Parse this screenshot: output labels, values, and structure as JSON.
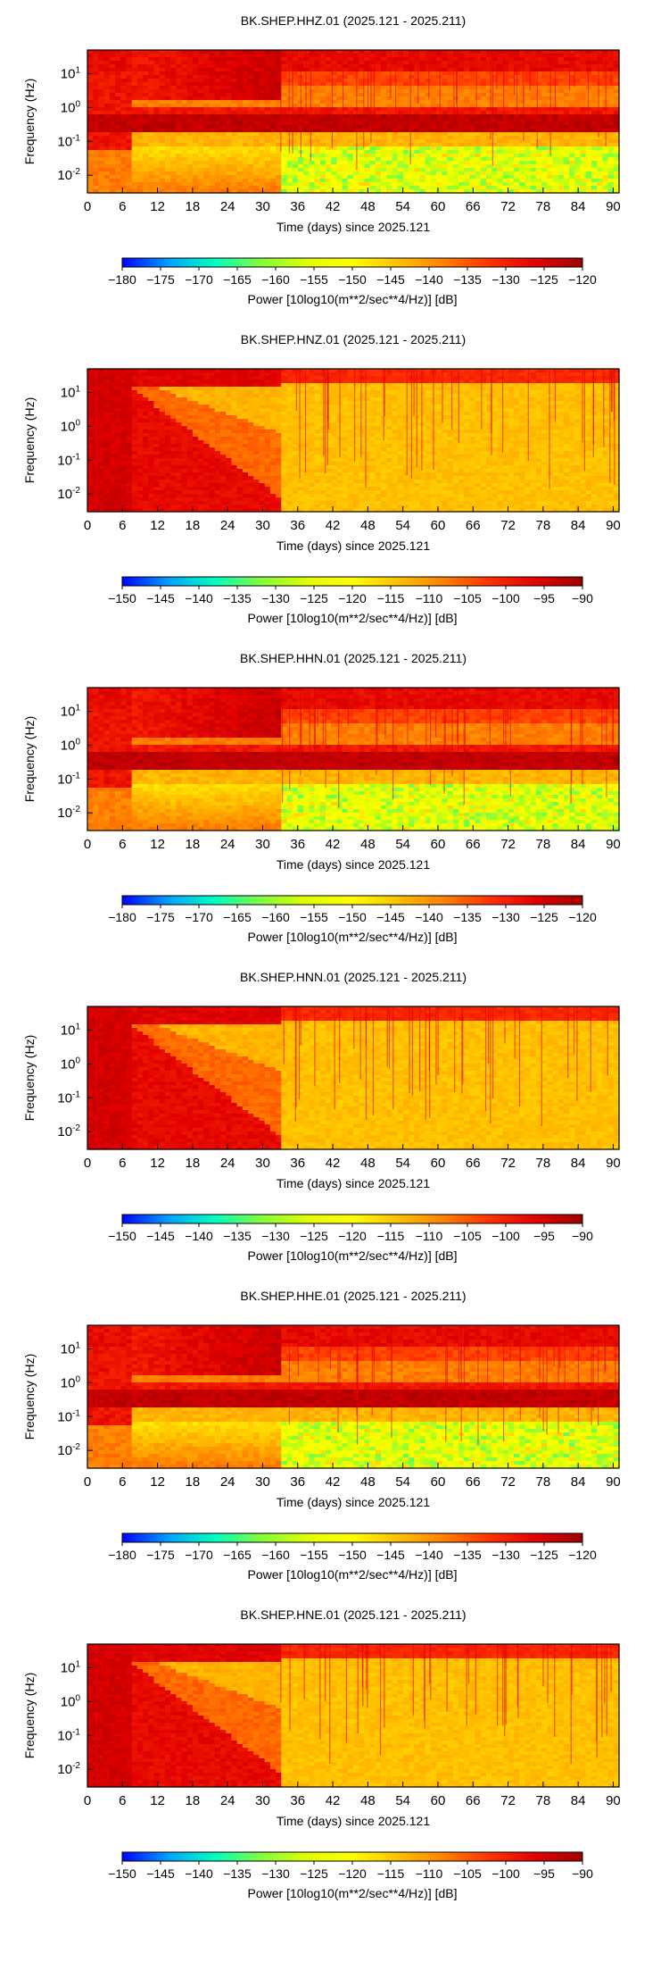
{
  "figure": {
    "xlabel": "Time (days) since 2025.121",
    "ylabel": "Frequency (Hz)",
    "colorbar_label": "Power [10log10(m**2/sec**4/Hz)] [dB]"
  },
  "colormap": [
    "#0000ff",
    "#00a0ff",
    "#00ffc0",
    "#7fff3f",
    "#e0ff00",
    "#ffff00",
    "#ffc000",
    "#ff8000",
    "#ff3000",
    "#e00000",
    "#a00000"
  ],
  "chart_data": [
    {
      "type": "heatmap",
      "title": "BK.SHEP.HHZ.01 (2025.121 - 2025.211)",
      "xlabel": "Time (days) since 2025.121",
      "ylabel": "Frequency (Hz)",
      "x_ticks": [
        0,
        6,
        12,
        18,
        24,
        30,
        36,
        42,
        48,
        54,
        60,
        66,
        72,
        78,
        84,
        90
      ],
      "xlim": [
        0,
        91
      ],
      "y_scale": "log",
      "y_ticks": [
        "10^-2",
        "10^-1",
        "10^0",
        "10^1"
      ],
      "ylim_hz": [
        0.003,
        50
      ],
      "colorbar": {
        "label": "Power [10log10(m**2/sec**4/Hz)] [dB]",
        "range_db": [
          -180,
          -120
        ],
        "ticks": [
          -180,
          -175,
          -170,
          -165,
          -160,
          -155,
          -150,
          -145,
          -140,
          -135,
          -130,
          -125,
          -120
        ]
      },
      "pattern": "broadband"
    },
    {
      "type": "heatmap",
      "title": "BK.SHEP.HNZ.01 (2025.121 - 2025.211)",
      "xlabel": "Time (days) since 2025.121",
      "ylabel": "Frequency (Hz)",
      "x_ticks": [
        0,
        6,
        12,
        18,
        24,
        30,
        36,
        42,
        48,
        54,
        60,
        66,
        72,
        78,
        84,
        90
      ],
      "xlim": [
        0,
        91
      ],
      "y_scale": "log",
      "y_ticks": [
        "10^-2",
        "10^-1",
        "10^0",
        "10^1"
      ],
      "ylim_hz": [
        0.003,
        50
      ],
      "colorbar": {
        "label": "Power [10log10(m**2/sec**4/Hz)] [dB]",
        "range_db": [
          -150,
          -90
        ],
        "ticks": [
          -150,
          -145,
          -140,
          -135,
          -130,
          -125,
          -120,
          -115,
          -110,
          -105,
          -100,
          -95,
          -90
        ]
      },
      "pattern": "strong-motion"
    },
    {
      "type": "heatmap",
      "title": "BK.SHEP.HHN.01 (2025.121 - 2025.211)",
      "xlabel": "Time (days) since 2025.121",
      "ylabel": "Frequency (Hz)",
      "x_ticks": [
        0,
        6,
        12,
        18,
        24,
        30,
        36,
        42,
        48,
        54,
        60,
        66,
        72,
        78,
        84,
        90
      ],
      "xlim": [
        0,
        91
      ],
      "y_scale": "log",
      "y_ticks": [
        "10^-2",
        "10^-1",
        "10^0",
        "10^1"
      ],
      "ylim_hz": [
        0.003,
        50
      ],
      "colorbar": {
        "label": "Power [10log10(m**2/sec**4/Hz)] [dB]",
        "range_db": [
          -180,
          -120
        ],
        "ticks": [
          -180,
          -175,
          -170,
          -165,
          -160,
          -155,
          -150,
          -145,
          -140,
          -135,
          -130,
          -125,
          -120
        ]
      },
      "pattern": "broadband"
    },
    {
      "type": "heatmap",
      "title": "BK.SHEP.HNN.01 (2025.121 - 2025.211)",
      "xlabel": "Time (days) since 2025.121",
      "ylabel": "Frequency (Hz)",
      "x_ticks": [
        0,
        6,
        12,
        18,
        24,
        30,
        36,
        42,
        48,
        54,
        60,
        66,
        72,
        78,
        84,
        90
      ],
      "xlim": [
        0,
        91
      ],
      "y_scale": "log",
      "y_ticks": [
        "10^-2",
        "10^-1",
        "10^0",
        "10^1"
      ],
      "ylim_hz": [
        0.003,
        50
      ],
      "colorbar": {
        "label": "Power [10log10(m**2/sec**4/Hz)] [dB]",
        "range_db": [
          -150,
          -90
        ],
        "ticks": [
          -150,
          -145,
          -140,
          -135,
          -130,
          -125,
          -120,
          -115,
          -110,
          -105,
          -100,
          -95,
          -90
        ]
      },
      "pattern": "strong-motion"
    },
    {
      "type": "heatmap",
      "title": "BK.SHEP.HHE.01 (2025.121 - 2025.211)",
      "xlabel": "Time (days) since 2025.121",
      "ylabel": "Frequency (Hz)",
      "x_ticks": [
        0,
        6,
        12,
        18,
        24,
        30,
        36,
        42,
        48,
        54,
        60,
        66,
        72,
        78,
        84,
        90
      ],
      "xlim": [
        0,
        91
      ],
      "y_scale": "log",
      "y_ticks": [
        "10^-2",
        "10^-1",
        "10^0",
        "10^1"
      ],
      "ylim_hz": [
        0.003,
        50
      ],
      "colorbar": {
        "label": "Power [10log10(m**2/sec**4/Hz)] [dB]",
        "range_db": [
          -180,
          -120
        ],
        "ticks": [
          -180,
          -175,
          -170,
          -165,
          -160,
          -155,
          -150,
          -145,
          -140,
          -135,
          -130,
          -125,
          -120
        ]
      },
      "pattern": "broadband"
    },
    {
      "type": "heatmap",
      "title": "BK.SHEP.HNE.01 (2025.121 - 2025.211)",
      "xlabel": "Time (days) since 2025.121",
      "ylabel": "Frequency (Hz)",
      "x_ticks": [
        0,
        6,
        12,
        18,
        24,
        30,
        36,
        42,
        48,
        54,
        60,
        66,
        72,
        78,
        84,
        90
      ],
      "xlim": [
        0,
        91
      ],
      "y_scale": "log",
      "y_ticks": [
        "10^-2",
        "10^-1",
        "10^0",
        "10^1"
      ],
      "ylim_hz": [
        0.003,
        50
      ],
      "colorbar": {
        "label": "Power [10log10(m**2/sec**4/Hz)] [dB]",
        "range_db": [
          -150,
          -90
        ],
        "ticks": [
          -150,
          -145,
          -140,
          -135,
          -130,
          -125,
          -120,
          -115,
          -110,
          -105,
          -100,
          -95,
          -90
        ]
      },
      "pattern": "strong-motion"
    }
  ]
}
